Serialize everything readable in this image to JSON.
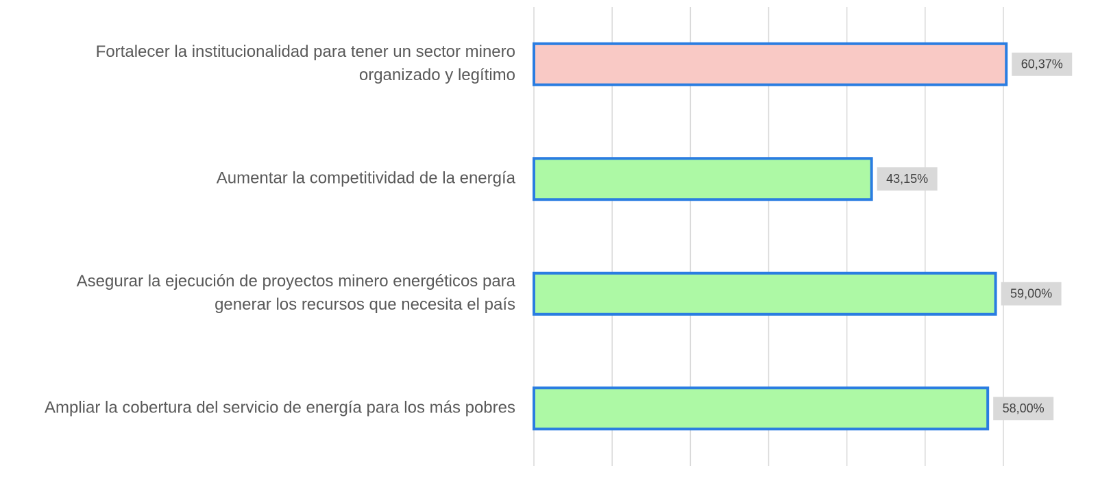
{
  "chart_data": {
    "type": "bar",
    "orientation": "horizontal",
    "categories": [
      [
        "Fortalecer la institucionalidad para tener un sector minero",
        "organizado y legítimo"
      ],
      [
        "Aumentar la competitividad de la energía"
      ],
      [
        "Asegurar la ejecución de proyectos minero energéticos para",
        "generar los recursos que necesita el país"
      ],
      [
        "Ampliar la cobertura del servicio de energía para los más pobres"
      ]
    ],
    "values": [
      60.37,
      43.15,
      59.0,
      58.0
    ],
    "value_labels": [
      "60,37%",
      "43,15%",
      "59,00%",
      "58,00%"
    ],
    "colors": [
      "#f9c9c5",
      "#adf9a5",
      "#adf9a5",
      "#adf9a5"
    ],
    "edgecolor": "#2a7de1",
    "xlim": [
      0,
      60
    ],
    "xticks": [
      0,
      10,
      20,
      30,
      40,
      50,
      60
    ],
    "grid": true
  }
}
